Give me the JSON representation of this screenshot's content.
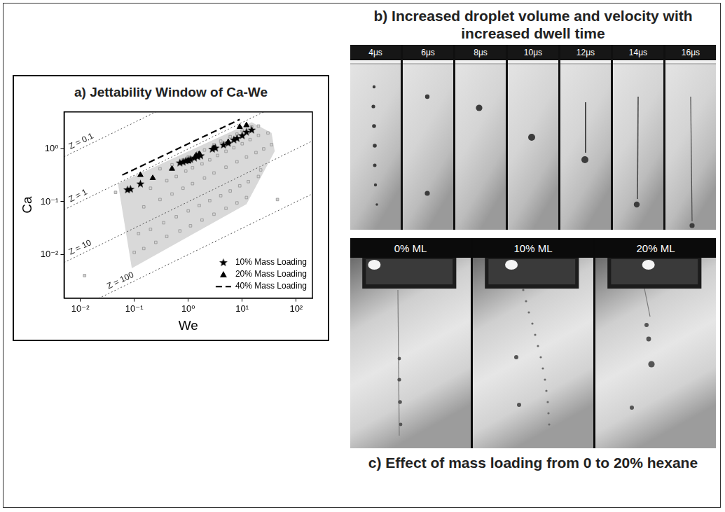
{
  "chart_data": {
    "type": "scatter",
    "title": "a) Jettability Window of Ca-We",
    "x_label": "We",
    "y_label": "Ca",
    "log": true,
    "grid": false,
    "legend": "lower right",
    "xlim": [
      0.005,
      200
    ],
    "ylim": [
      0.0015,
      5
    ],
    "xticks": [
      {
        "value": 0.01,
        "label": "10⁻²"
      },
      {
        "value": 0.1,
        "label": "10⁻¹"
      },
      {
        "value": 1,
        "label": "10⁰"
      },
      {
        "value": 10,
        "label": "10¹"
      },
      {
        "value": 100,
        "label": "10²"
      }
    ],
    "yticks": [
      {
        "value": 0.01,
        "label": "10⁻²"
      },
      {
        "value": 0.1,
        "label": "10⁻¹"
      },
      {
        "value": 1,
        "label": "10⁰"
      }
    ],
    "series": [
      {
        "name": "10% Mass Loading",
        "type": "scatter",
        "marker": "star",
        "color": "#000000",
        "x": [
          0.075,
          0.085,
          0.13,
          0.7,
          0.8,
          0.9,
          1.0,
          1.1,
          1.3,
          1.5,
          1.7,
          2.8,
          3.2,
          4.5,
          5.5,
          7,
          8,
          10,
          12,
          15
        ],
        "y": [
          0.17,
          0.175,
          0.22,
          0.55,
          0.57,
          0.6,
          0.62,
          0.64,
          0.68,
          0.72,
          0.75,
          1.0,
          1.05,
          1.2,
          1.3,
          1.5,
          1.6,
          1.8,
          2.1,
          2.3
        ]
      },
      {
        "name": "20% Mass Loading",
        "type": "scatter",
        "marker": "triangle",
        "color": "#000000",
        "x": [
          0.13,
          0.22,
          0.5,
          1.0,
          1.4,
          1.6,
          3.0,
          5.5,
          9,
          12
        ],
        "y": [
          0.32,
          0.28,
          0.42,
          0.58,
          0.75,
          0.8,
          1.05,
          1.35,
          2.6,
          2.8
        ]
      },
      {
        "name": "40% Mass Loading",
        "type": "line",
        "line_style": "dashed",
        "color": "#000000",
        "x": [
          0.06,
          9
        ],
        "y": [
          0.32,
          3.6
        ]
      },
      {
        "type": "scatter",
        "marker": "square",
        "color": "#d4d4d4",
        "x": [
          0.3,
          0.5,
          0.8,
          1,
          1.5,
          2,
          3,
          4,
          6,
          8,
          10,
          15,
          20,
          0.2,
          0.4,
          0.6,
          0.9,
          1.2,
          1.8,
          2.5,
          3.5,
          5,
          7,
          10,
          14,
          20,
          30,
          0.15,
          0.3,
          0.5,
          0.8,
          1.2,
          2,
          3,
          5,
          8,
          12,
          18,
          25,
          35,
          0.12,
          0.2,
          0.35,
          0.6,
          1,
          1.6,
          2.5,
          4,
          6,
          9,
          13,
          20,
          22,
          0.1,
          0.15,
          0.25,
          0.4,
          0.7,
          1.1,
          1.8,
          3,
          5,
          8,
          12,
          0.045,
          0.012,
          45
        ],
        "y": [
          0.42,
          0.5,
          0.62,
          0.7,
          0.85,
          0.95,
          1.2,
          1.4,
          1.7,
          1.9,
          2.2,
          2.6,
          2.7,
          0.18,
          0.25,
          0.3,
          0.38,
          0.44,
          0.52,
          0.62,
          0.75,
          0.9,
          1.05,
          1.25,
          1.5,
          1.8,
          2.0,
          0.08,
          0.11,
          0.14,
          0.18,
          0.22,
          0.28,
          0.35,
          0.45,
          0.57,
          0.7,
          0.85,
          1.0,
          1.2,
          0.025,
          0.03,
          0.04,
          0.052,
          0.067,
          0.085,
          0.105,
          0.13,
          0.16,
          0.2,
          0.24,
          0.3,
          0.4,
          0.011,
          0.013,
          0.017,
          0.022,
          0.028,
          0.035,
          0.045,
          0.058,
          0.075,
          0.095,
          0.12,
          0.15,
          0.004,
          0.11
        ]
      },
      {
        "type": "area",
        "color": "#d9d9d9",
        "x": [
          0.05,
          15,
          35,
          40,
          12,
          0.09
        ],
        "y": [
          0.22,
          3.2,
          2.0,
          0.9,
          0.09,
          0.0055
        ]
      }
    ],
    "reference_lines": [
      {
        "label": "Z = 0.1",
        "color": "#555555",
        "line_style": "dotted",
        "x": [
          0.005,
          200
        ],
        "y": [
          0.707,
          141
        ]
      },
      {
        "label": "Z = 1",
        "color": "#555555",
        "line_style": "dotted",
        "x": [
          0.005,
          200
        ],
        "y": [
          0.0707,
          14.1
        ]
      },
      {
        "label": "Z = 10",
        "color": "#555555",
        "line_style": "dotted",
        "x": [
          0.005,
          200
        ],
        "y": [
          0.00707,
          1.41
        ]
      },
      {
        "label": "Z = 100",
        "color": "#555555",
        "line_style": "dotted",
        "x": [
          0.005,
          200
        ],
        "y": [
          0.000707,
          0.141
        ]
      }
    ]
  },
  "panels": [
    {
      "title": "b) Increased droplet volume and velocity with increased dwell time",
      "frames": [
        "4μs",
        "6μs",
        "8μs",
        "10μs",
        "12μs",
        "14μs",
        "16μs"
      ]
    },
    {
      "title": "c) Effect of mass loading from 0 to 20% hexane",
      "frames": [
        "0% ML",
        "10% ML",
        "20% ML"
      ]
    }
  ]
}
